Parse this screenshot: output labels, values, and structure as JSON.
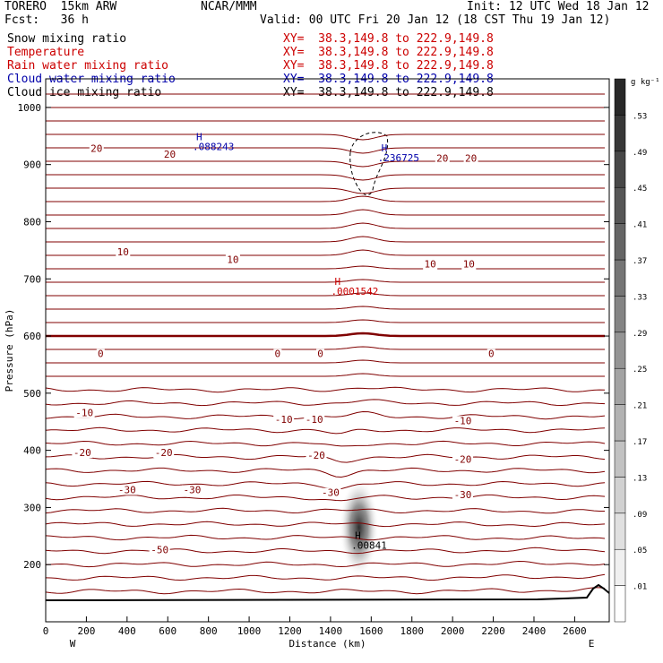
{
  "header": {
    "model": "TORERO  15km ARW",
    "center": "NCAR/MMM",
    "init": "Init: 12 UTC Wed 18 Jan 12",
    "fcst": "Fcst:   36 h",
    "valid": "Valid: 00 UTC Fri 20 Jan 12 (18 CST Thu 19 Jan 12)"
  },
  "legend": [
    {
      "name": "Snow mixing ratio",
      "xy": "XY=  38.3,149.8 to 222.9,149.8",
      "color": "#000000"
    },
    {
      "name": "Temperature",
      "xy": "XY=  38.3,149.8 to 222.9,149.8",
      "color": "#cc0000"
    },
    {
      "name": "Rain water mixing ratio",
      "xy": "XY=  38.3,149.8 to 222.9,149.8",
      "color": "#cc0000"
    },
    {
      "name": "Cloud water mixing ratio",
      "xy": "XY=  38.3,149.8 to 222.9,149.8",
      "color": "#0000aa"
    },
    {
      "name": "Cloud ice mixing ratio",
      "xy": "XY=  38.3,149.8 to 222.9,149.8",
      "color": "#000000"
    }
  ],
  "chart_data": {
    "type": "line",
    "xlabel": "Distance (km)",
    "ylabel": "Pressure (hPa)",
    "xlim": [
      0,
      2770
    ],
    "ylim": [
      1050,
      100
    ],
    "x_ticks": [
      0,
      200,
      400,
      600,
      800,
      1000,
      1200,
      1400,
      1600,
      1800,
      2000,
      2200,
      2400,
      2600
    ],
    "y_ticks": [
      200,
      300,
      400,
      500,
      600,
      700,
      800,
      900,
      1000
    ],
    "x_ends": {
      "left": "W",
      "right": "E"
    },
    "contour_color": "#800000",
    "isotherm_labels": [
      {
        "text": "-50",
        "x": 560,
        "p": 220
      },
      {
        "text": "-30",
        "x": 400,
        "p": 325
      },
      {
        "text": "-30",
        "x": 720,
        "p": 325
      },
      {
        "text": "-30",
        "x": 1400,
        "p": 320
      },
      {
        "text": "-30",
        "x": 2050,
        "p": 316
      },
      {
        "text": "-20",
        "x": 180,
        "p": 390
      },
      {
        "text": "-20",
        "x": 580,
        "p": 390
      },
      {
        "text": "-20",
        "x": 1330,
        "p": 385
      },
      {
        "text": "-20",
        "x": 2050,
        "p": 378
      },
      {
        "text": "-10",
        "x": 190,
        "p": 460
      },
      {
        "text": "-10",
        "x": 1170,
        "p": 448
      },
      {
        "text": "-10",
        "x": 1320,
        "p": 448
      },
      {
        "text": "-10",
        "x": 2050,
        "p": 446
      },
      {
        "text": "0",
        "x": 270,
        "p": 563
      },
      {
        "text": "0",
        "x": 1140,
        "p": 563
      },
      {
        "text": "0",
        "x": 1350,
        "p": 563
      },
      {
        "text": "0",
        "x": 2190,
        "p": 563
      },
      {
        "text": "10",
        "x": 380,
        "p": 741
      },
      {
        "text": "10",
        "x": 920,
        "p": 728
      },
      {
        "text": "10",
        "x": 1890,
        "p": 720
      },
      {
        "text": "10",
        "x": 2080,
        "p": 720
      },
      {
        "text": "20",
        "x": 250,
        "p": 922
      },
      {
        "text": "20",
        "x": 610,
        "p": 912
      },
      {
        "text": "20",
        "x": 1950,
        "p": 905
      },
      {
        "text": "20",
        "x": 2090,
        "p": 905
      }
    ],
    "extrema": [
      {
        "mark": "H",
        "value": ".00841",
        "x": 1520,
        "p": 228,
        "field": "snow",
        "color": "#000000"
      },
      {
        "mark": "H",
        "value": ".0001542",
        "x": 1420,
        "p": 672,
        "field": "rain",
        "color": "#cc0000"
      },
      {
        "mark": "H",
        "value": ".088243",
        "x": 740,
        "p": 925,
        "field": "cloud water",
        "color": "#0000aa"
      },
      {
        "mark": "H",
        "value": ".236725",
        "x": 1650,
        "p": 906,
        "field": "cloud water",
        "color": "#0000aa"
      }
    ],
    "colorbar": {
      "unit": "g kg⁻¹",
      "ticks": [
        ".01",
        ".05",
        ".09",
        ".13",
        ".17",
        ".21",
        ".25",
        ".29",
        ".33",
        ".37",
        ".41",
        ".45",
        ".49",
        ".53"
      ]
    }
  }
}
